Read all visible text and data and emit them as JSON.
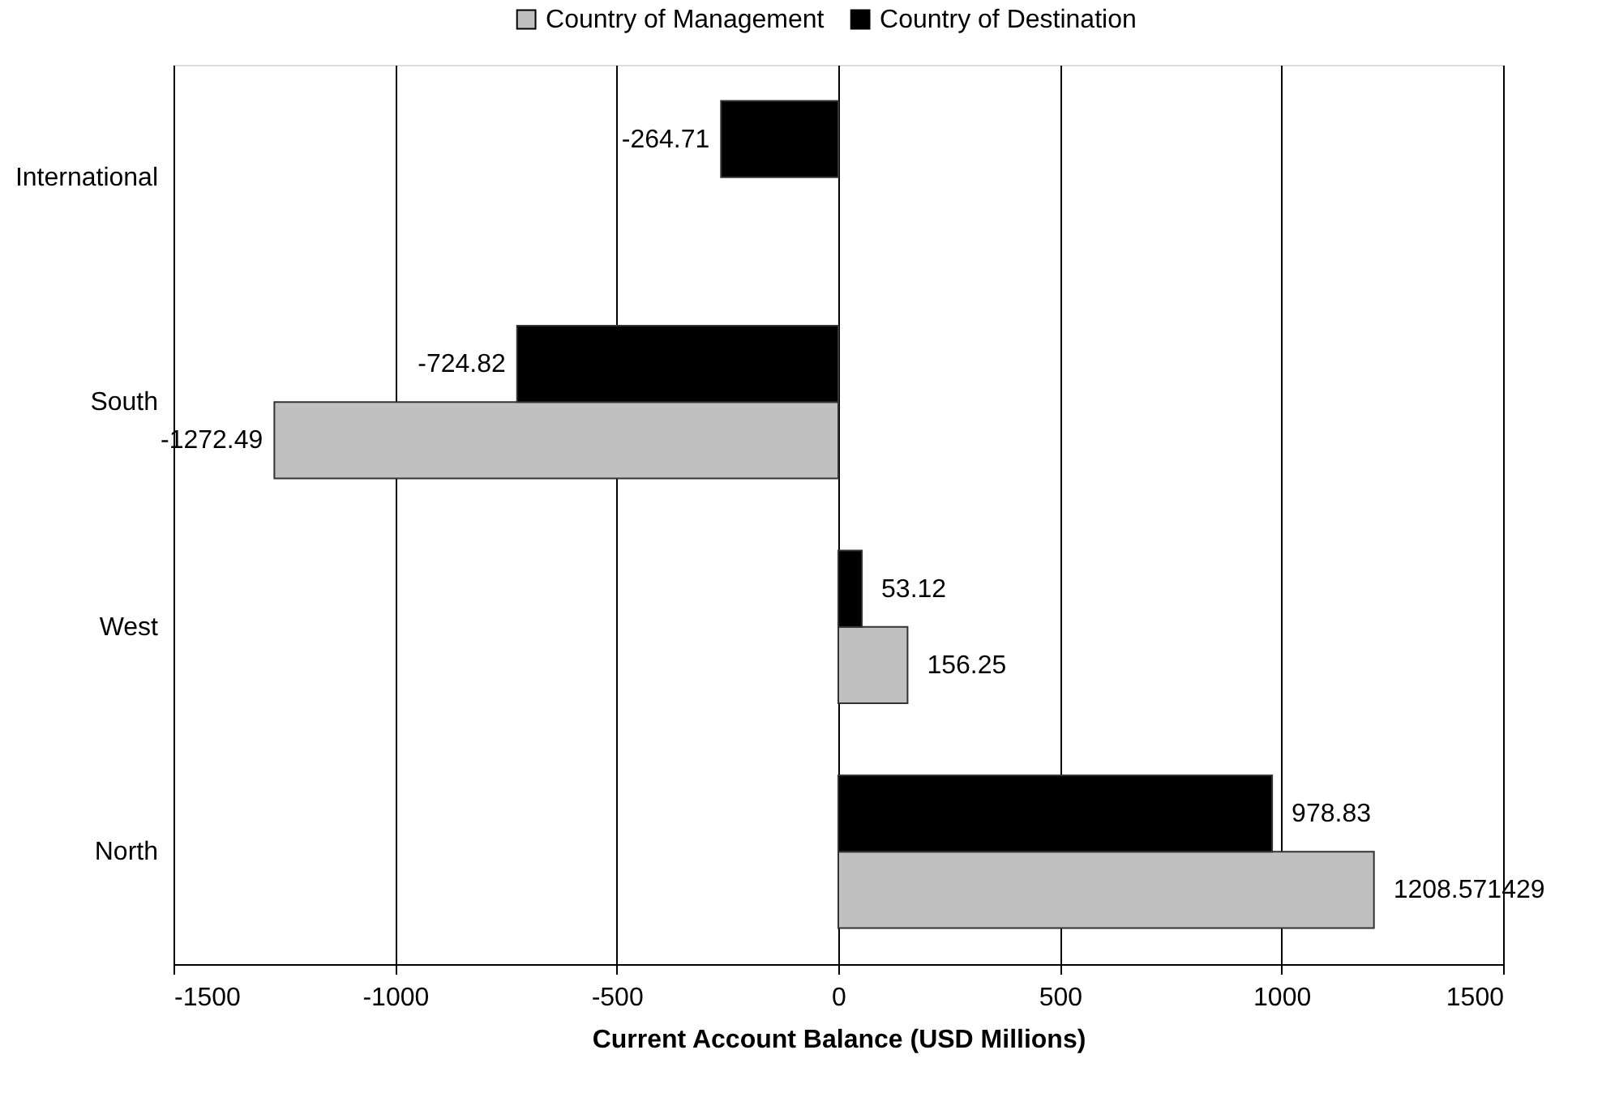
{
  "chart_data": {
    "type": "bar",
    "orientation": "horizontal",
    "categories": [
      "International",
      "South",
      "West",
      "North"
    ],
    "series": [
      {
        "name": "Country of Management",
        "color": "#c0c0c0",
        "values": [
          null,
          -1272.49,
          156.25,
          1208.571429
        ]
      },
      {
        "name": "Country of Destination",
        "color": "#000000",
        "values": [
          -264.71,
          -724.82,
          53.12,
          978.83
        ]
      }
    ],
    "xlabel": "Current Account Balance (USD Millions)",
    "xlim": [
      -1500,
      1500
    ],
    "xticks": [
      -1500,
      -1000,
      -500,
      0,
      500,
      1000,
      1500
    ],
    "grid": "x",
    "legend": "top",
    "data_labels": true
  }
}
